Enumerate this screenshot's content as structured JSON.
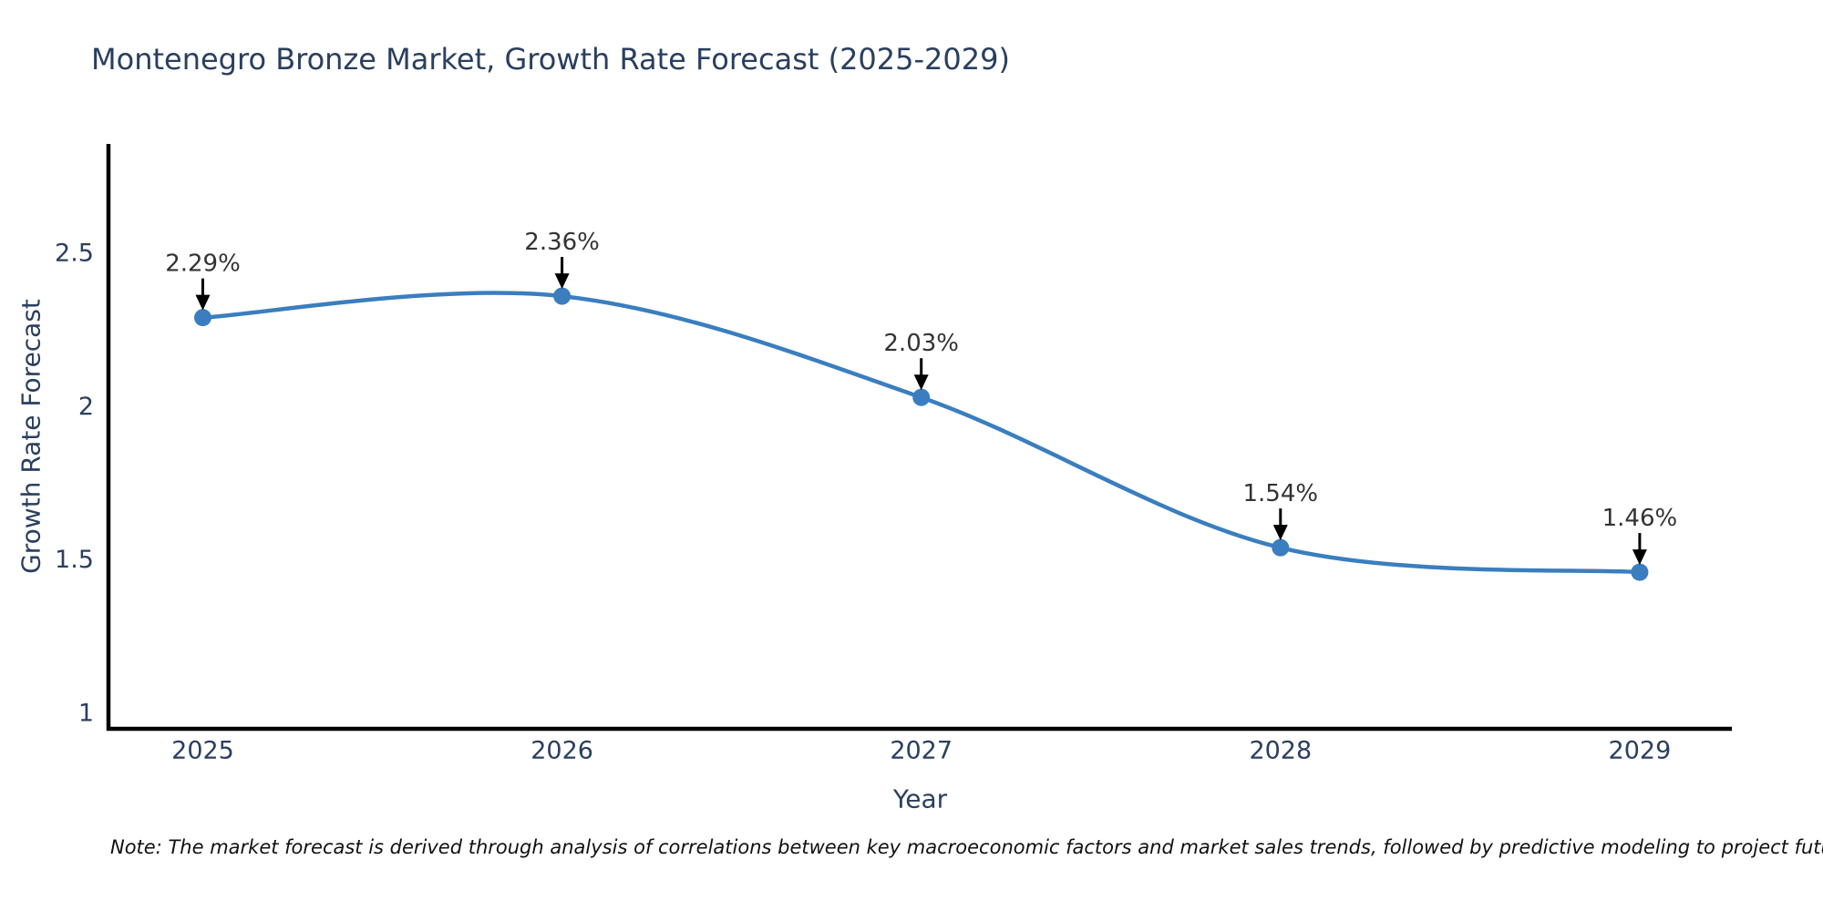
{
  "title": "Montenegro Bronze Market, Growth Rate Forecast (2025-2029)",
  "note": "Note: The market forecast is derived through analysis of correlations between key macroeconomic factors and market sales trends, followed by predictive modeling to project future sales",
  "chart_data": {
    "type": "line",
    "x": [
      2025,
      2026,
      2027,
      2028,
      2029
    ],
    "values": [
      2.29,
      2.36,
      2.03,
      1.54,
      1.46
    ],
    "point_labels": [
      "2.29%",
      "2.36%",
      "2.03%",
      "1.54%",
      "1.46%"
    ],
    "series_name": "Growth Rate Forecast",
    "title": "Montenegro Bronze Market, Growth Rate Forecast (2025-2029)",
    "xlabel": "Year",
    "ylabel": "Growth Rate Forecast",
    "xtick_labels": [
      "2025",
      "2026",
      "2027",
      "2028",
      "2029"
    ],
    "yticks": [
      1,
      1.5,
      2,
      2.5
    ],
    "ytick_labels": [
      "1",
      "1.5",
      "2",
      "2.5"
    ],
    "xlim": [
      2024.74,
      2029.26
    ],
    "ylim": [
      0.95,
      2.88
    ],
    "line_shape": "spline",
    "grid": false,
    "legend": "none",
    "annotation_arrows": true,
    "colors": {
      "line": "#3a7ebf",
      "marker": "#3a7ebf",
      "axis_line": "#000000",
      "axis_text": "#2a3f5f",
      "annotation_text": "#333333",
      "background": "#ffffff"
    }
  }
}
